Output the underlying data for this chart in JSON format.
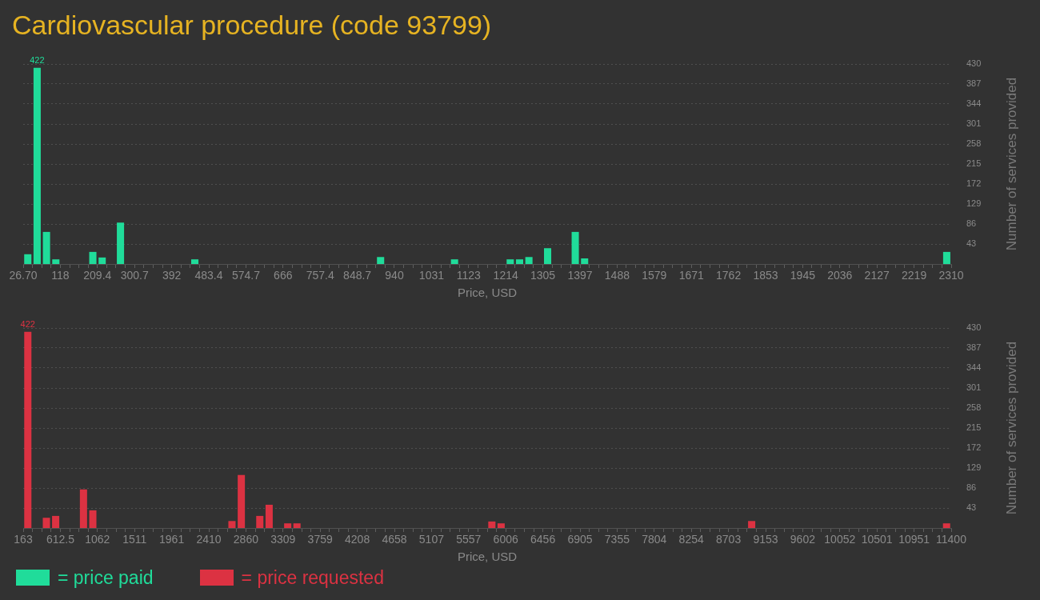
{
  "chart_data": [
    {
      "type": "bar",
      "title": "Cardiovascular procedure (code 93799)",
      "xlabel": "Price, USD",
      "ylabel": "Number of services provided",
      "x": [
        38,
        61,
        84,
        107,
        198,
        221,
        266,
        449,
        906,
        1088,
        1225,
        1248,
        1271,
        1317,
        1385,
        1408,
        2299
      ],
      "series": [
        {
          "name": "= price paid",
          "color": "#20dc9a",
          "values": [
            21,
            422,
            69,
            10,
            26,
            14,
            89,
            10,
            15,
            10,
            10,
            10,
            15,
            34,
            69,
            12,
            26
          ],
          "value_labels": [
            null,
            "422",
            null,
            null,
            null,
            null,
            null,
            null,
            null,
            null,
            null,
            null,
            null,
            null,
            null,
            null,
            null
          ]
        }
      ],
      "xlim": [
        26.7,
        2310
      ],
      "ylim": [
        0,
        430
      ],
      "xticks": [
        {
          "value": 26.7,
          "label": "26.70"
        },
        {
          "value": 49.5,
          "label": null
        },
        {
          "value": 72.4,
          "label": null
        },
        {
          "value": 95.2,
          "label": null
        },
        118,
        {
          "value": 140.9,
          "label": null
        },
        {
          "value": 163.7,
          "label": null
        },
        {
          "value": 186.5,
          "label": null
        },
        209.4,
        {
          "value": 232.2,
          "label": null
        },
        {
          "value": 255,
          "label": null
        },
        {
          "value": 277.9,
          "label": null
        },
        300.7,
        {
          "value": 323.5,
          "label": null
        },
        {
          "value": 346.4,
          "label": null
        },
        {
          "value": 369.2,
          "label": null
        },
        392,
        {
          "value": 414.9,
          "label": null
        },
        {
          "value": 437.7,
          "label": null
        },
        {
          "value": 460.5,
          "label": null
        },
        483.4,
        {
          "value": 506.2,
          "label": null
        },
        {
          "value": 529,
          "label": null
        },
        {
          "value": 551.9,
          "label": null
        },
        574.7,
        {
          "value": 597.5,
          "label": null
        },
        {
          "value": 620.4,
          "label": null
        },
        {
          "value": 643.2,
          "label": null
        },
        666,
        {
          "value": 688.9,
          "label": null
        },
        {
          "value": 711.7,
          "label": null
        },
        {
          "value": 734.5,
          "label": null
        },
        757.4,
        {
          "value": 780.2,
          "label": null
        },
        {
          "value": 803,
          "label": null
        },
        {
          "value": 825.9,
          "label": null
        },
        848.7,
        {
          "value": 871.5,
          "label": null
        },
        {
          "value": 894.4,
          "label": null
        },
        {
          "value": 917.2,
          "label": null
        },
        940,
        {
          "value": 962.9,
          "label": null
        },
        {
          "value": 985.7,
          "label": null
        },
        {
          "value": 1008.5,
          "label": null
        },
        {
          "value": 1031.4,
          "label": "1031"
        },
        {
          "value": 1054.2,
          "label": null
        },
        {
          "value": 1077,
          "label": null
        },
        {
          "value": 1099.9,
          "label": null
        },
        {
          "value": 1122.7,
          "label": "1123"
        },
        {
          "value": 1145.5,
          "label": null
        },
        {
          "value": 1168.4,
          "label": null
        },
        {
          "value": 1191.2,
          "label": null
        },
        1214,
        {
          "value": 1236.8,
          "label": null
        },
        {
          "value": 1259.7,
          "label": null
        },
        {
          "value": 1282.5,
          "label": null
        },
        {
          "value": 1305.3,
          "label": "1305"
        },
        {
          "value": 1328.2,
          "label": null
        },
        {
          "value": 1351,
          "label": null
        },
        {
          "value": 1373.8,
          "label": null
        },
        {
          "value": 1396.7,
          "label": "1397"
        },
        {
          "value": 1419.5,
          "label": null
        },
        {
          "value": 1442.3,
          "label": null
        },
        {
          "value": 1465.2,
          "label": null
        },
        1488,
        {
          "value": 1510.8,
          "label": null
        },
        {
          "value": 1533.7,
          "label": null
        },
        {
          "value": 1556.5,
          "label": null
        },
        {
          "value": 1579.3,
          "label": "1579"
        },
        {
          "value": 1602.2,
          "label": null
        },
        {
          "value": 1625,
          "label": null
        },
        {
          "value": 1647.8,
          "label": null
        },
        {
          "value": 1670.7,
          "label": "1671"
        },
        {
          "value": 1693.5,
          "label": null
        },
        {
          "value": 1716.3,
          "label": null
        },
        {
          "value": 1739.2,
          "label": null
        },
        1762,
        {
          "value": 1784.8,
          "label": null
        },
        {
          "value": 1807.7,
          "label": null
        },
        {
          "value": 1830.5,
          "label": null
        },
        {
          "value": 1853.3,
          "label": "1853"
        },
        {
          "value": 1876.2,
          "label": null
        },
        {
          "value": 1899,
          "label": null
        },
        {
          "value": 1921.8,
          "label": null
        },
        {
          "value": 1944.7,
          "label": "1945"
        },
        {
          "value": 1967.5,
          "label": null
        },
        {
          "value": 1990.3,
          "label": null
        },
        {
          "value": 2013.2,
          "label": null
        },
        2036,
        {
          "value": 2058.8,
          "label": null
        },
        {
          "value": 2081.7,
          "label": null
        },
        {
          "value": 2104.5,
          "label": null
        },
        {
          "value": 2127.3,
          "label": "2127"
        },
        {
          "value": 2150.2,
          "label": null
        },
        {
          "value": 2173,
          "label": null
        },
        {
          "value": 2195.8,
          "label": null
        },
        {
          "value": 2218.7,
          "label": "2219"
        },
        {
          "value": 2241.5,
          "label": null
        },
        {
          "value": 2264.3,
          "label": null
        },
        {
          "value": 2287.2,
          "label": null
        },
        2310
      ],
      "yticks": [
        43,
        86,
        129,
        172,
        215,
        258,
        301,
        344,
        387,
        430
      ],
      "grid": "y",
      "legend": "bottom left"
    },
    {
      "type": "bar",
      "xlabel": "Price, USD",
      "ylabel": "Number of services provided",
      "x": [
        219,
        444,
        556,
        893,
        1006,
        2691,
        2804,
        3028,
        3141,
        3366,
        3478,
        5838,
        5950,
        8984,
        11344
      ],
      "series": [
        {
          "name": "= price requested",
          "color": "#dc3242",
          "values": [
            422,
            22,
            26,
            83,
            38,
            15,
            114,
            26,
            50,
            10,
            10,
            14,
            10,
            15,
            10
          ],
          "value_labels": [
            "422",
            null,
            null,
            null,
            null,
            null,
            null,
            null,
            null,
            null,
            null,
            null,
            null,
            null,
            null
          ]
        }
      ],
      "xlim": [
        163,
        11400
      ],
      "ylim": [
        0,
        430
      ],
      "xticks": [
        163,
        {
          "value": 275.4,
          "label": null
        },
        {
          "value": 387.7,
          "label": null
        },
        {
          "value": 500.1,
          "label": null
        },
        612.5,
        {
          "value": 724.9,
          "label": null
        },
        {
          "value": 837.2,
          "label": null
        },
        {
          "value": 949.6,
          "label": null
        },
        1062,
        {
          "value": 1174.3,
          "label": null
        },
        {
          "value": 1286.7,
          "label": null
        },
        {
          "value": 1399.1,
          "label": null
        },
        {
          "value": 1511.4,
          "label": "1511"
        },
        {
          "value": 1623.8,
          "label": null
        },
        {
          "value": 1736.2,
          "label": null
        },
        {
          "value": 1848.6,
          "label": null
        },
        {
          "value": 1960.9,
          "label": "1961"
        },
        {
          "value": 2073.3,
          "label": null
        },
        {
          "value": 2185.7,
          "label": null
        },
        {
          "value": 2298,
          "label": null
        },
        {
          "value": 2410.4,
          "label": "2410"
        },
        {
          "value": 2522.8,
          "label": null
        },
        {
          "value": 2635.1,
          "label": null
        },
        {
          "value": 2747.5,
          "label": null
        },
        {
          "value": 2859.9,
          "label": "2860"
        },
        {
          "value": 2972.3,
          "label": null
        },
        {
          "value": 3084.6,
          "label": null
        },
        {
          "value": 3197,
          "label": null
        },
        {
          "value": 3309.4,
          "label": "3309"
        },
        {
          "value": 3421.7,
          "label": null
        },
        {
          "value": 3534.1,
          "label": null
        },
        {
          "value": 3646.5,
          "label": null
        },
        {
          "value": 3758.8,
          "label": "3759"
        },
        {
          "value": 3871.2,
          "label": null
        },
        {
          "value": 3983.6,
          "label": null
        },
        {
          "value": 4096,
          "label": null
        },
        {
          "value": 4208.3,
          "label": "4208"
        },
        {
          "value": 4320.7,
          "label": null
        },
        {
          "value": 4433.1,
          "label": null
        },
        {
          "value": 4545.4,
          "label": null
        },
        {
          "value": 4657.8,
          "label": "4658"
        },
        {
          "value": 4770.2,
          "label": null
        },
        {
          "value": 4882.5,
          "label": null
        },
        {
          "value": 4994.9,
          "label": null
        },
        {
          "value": 5107.3,
          "label": "5107"
        },
        {
          "value": 5219.7,
          "label": null
        },
        {
          "value": 5332,
          "label": null
        },
        {
          "value": 5444.4,
          "label": null
        },
        {
          "value": 5556.8,
          "label": "5557"
        },
        {
          "value": 5669.1,
          "label": null
        },
        {
          "value": 5781.5,
          "label": null
        },
        {
          "value": 5893.9,
          "label": null
        },
        {
          "value": 6006.2,
          "label": "6006"
        },
        {
          "value": 6118.6,
          "label": null
        },
        {
          "value": 6231,
          "label": null
        },
        {
          "value": 6343.4,
          "label": null
        },
        {
          "value": 6455.7,
          "label": "6456"
        },
        {
          "value": 6568.1,
          "label": null
        },
        {
          "value": 6680.5,
          "label": null
        },
        {
          "value": 6792.8,
          "label": null
        },
        {
          "value": 6905.2,
          "label": "6905"
        },
        {
          "value": 7017.6,
          "label": null
        },
        {
          "value": 7129.9,
          "label": null
        },
        {
          "value": 7242.3,
          "label": null
        },
        {
          "value": 7354.7,
          "label": "7355"
        },
        {
          "value": 7467.1,
          "label": null
        },
        {
          "value": 7579.4,
          "label": null
        },
        {
          "value": 7691.8,
          "label": null
        },
        {
          "value": 7804.2,
          "label": "7804"
        },
        {
          "value": 7916.5,
          "label": null
        },
        {
          "value": 8028.9,
          "label": null
        },
        {
          "value": 8141.3,
          "label": null
        },
        {
          "value": 8253.6,
          "label": "8254"
        },
        {
          "value": 8366,
          "label": null
        },
        {
          "value": 8478.4,
          "label": null
        },
        {
          "value": 8590.8,
          "label": null
        },
        {
          "value": 8703.1,
          "label": "8703"
        },
        {
          "value": 8815.5,
          "label": null
        },
        {
          "value": 8927.9,
          "label": null
        },
        {
          "value": 9040.2,
          "label": null
        },
        {
          "value": 9152.6,
          "label": "9153"
        },
        {
          "value": 9265,
          "label": null
        },
        {
          "value": 9377.3,
          "label": null
        },
        {
          "value": 9489.7,
          "label": null
        },
        {
          "value": 9602.1,
          "label": "9602"
        },
        {
          "value": 9714.5,
          "label": null
        },
        {
          "value": 9826.8,
          "label": null
        },
        {
          "value": 9939.2,
          "label": null
        },
        {
          "value": 10051.6,
          "label": "10052"
        },
        {
          "value": 10163.9,
          "label": null
        },
        {
          "value": 10276.3,
          "label": null
        },
        {
          "value": 10388.7,
          "label": null
        },
        10501,
        {
          "value": 10613.4,
          "label": null
        },
        {
          "value": 10725.8,
          "label": null
        },
        {
          "value": 10838.2,
          "label": null
        },
        {
          "value": 10950.5,
          "label": "10951"
        },
        {
          "value": 11062.9,
          "label": null
        },
        {
          "value": 11175.3,
          "label": null
        },
        {
          "value": 11287.6,
          "label": null
        },
        11400
      ],
      "yticks": [
        43,
        86,
        129,
        172,
        215,
        258,
        301,
        344,
        387,
        430
      ],
      "grid": "y",
      "legend": "bottom left"
    }
  ]
}
